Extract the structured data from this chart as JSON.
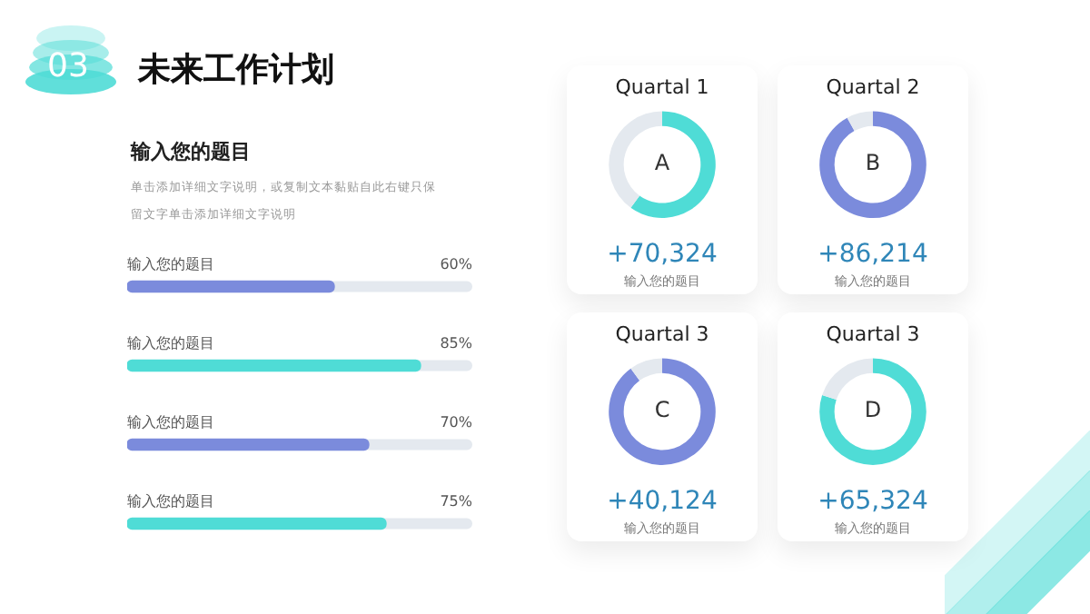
{
  "chart_data": [
    {
      "type": "bar",
      "orientation": "horizontal",
      "title": "未来工作计划",
      "subtitle": "输入您的题目",
      "annotations": [
        "03",
        "单击添加详细文字说明，或复制文本黏贴自此右键只保留文字单击添加详细文字说明"
      ],
      "categories": [
        "输入您的题目",
        "输入您的题目",
        "输入您的题目",
        "输入您的题目"
      ],
      "values": [
        60,
        85,
        70,
        75
      ],
      "value_labels": [
        "60%",
        "85%",
        "70%",
        "75%"
      ],
      "colors": [
        "#7b8bdc",
        "#4fdcd6",
        "#7b8bdc",
        "#4fdcd6"
      ],
      "xlim": [
        0,
        100
      ],
      "legend": false
    },
    {
      "type": "donut",
      "title": "Quartal 1",
      "categories": [
        null,
        null
      ],
      "values": [
        60,
        40
      ],
      "colors": [
        "#4fdcd6",
        "#e4e9ef"
      ],
      "annotations": [
        "A",
        "+70,324",
        "输入您的题目"
      ],
      "legend": false
    },
    {
      "type": "donut",
      "title": "Quartal 2",
      "categories": [
        null,
        null
      ],
      "values": [
        92,
        8
      ],
      "colors": [
        "#7b8bdc",
        "#e4e9ef"
      ],
      "annotations": [
        "B",
        "+86,214",
        "输入您的题目"
      ],
      "legend": false
    },
    {
      "type": "donut",
      "title": "Quartal 3",
      "categories": [
        null,
        null
      ],
      "values": [
        90,
        10
      ],
      "colors": [
        "#7b8bdc",
        "#e4e9ef"
      ],
      "annotations": [
        "C",
        "+40,124",
        "输入您的题目"
      ],
      "legend": false
    },
    {
      "type": "donut",
      "title": "Quartal 3",
      "categories": [
        null,
        null
      ],
      "values": [
        80,
        20
      ],
      "colors": [
        "#4fdcd6",
        "#e4e9ef"
      ],
      "annotations": [
        "D",
        "+65,324",
        "输入您的题目"
      ],
      "legend": false
    }
  ]
}
